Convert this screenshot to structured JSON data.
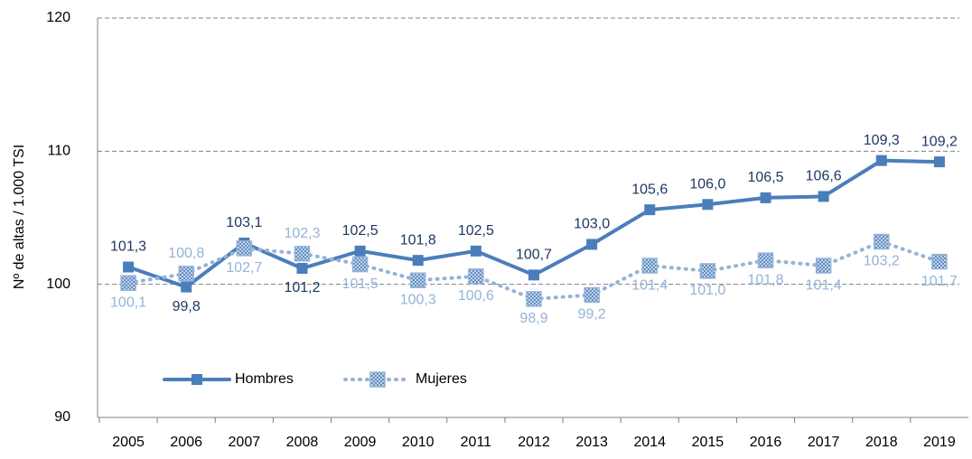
{
  "chart_data": {
    "type": "line",
    "y_label": "Nº de altas / 1.000 TSI",
    "categories": [
      "2005",
      "2006",
      "2007",
      "2008",
      "2009",
      "2010",
      "2011",
      "2012",
      "2013",
      "2014",
      "2015",
      "2016",
      "2017",
      "2018",
      "2019"
    ],
    "series": [
      {
        "name": "Hombres",
        "color": "#4a7ebb",
        "label_color": "#1f3864",
        "values": [
          101.3,
          99.8,
          103.1,
          101.2,
          102.5,
          101.8,
          102.5,
          100.7,
          103.0,
          105.6,
          106.0,
          106.5,
          106.6,
          109.3,
          109.2
        ],
        "value_labels": [
          "101,3",
          "99,8",
          "103,1",
          "101,2",
          "102,5",
          "101,8",
          "102,5",
          "100,7",
          "103,0",
          "105,6",
          "106,0",
          "106,5",
          "106,6",
          "109,3",
          "109,2"
        ]
      },
      {
        "name": "Mujeres",
        "color": "#95b3d7",
        "label_color": "#95b3d7",
        "values": [
          100.1,
          100.8,
          102.7,
          102.3,
          101.5,
          100.3,
          100.6,
          98.9,
          99.2,
          101.4,
          101.0,
          101.8,
          101.4,
          103.2,
          101.7
        ],
        "value_labels": [
          "100,1",
          "100,8",
          "102,7",
          "102,3",
          "101,5",
          "100,3",
          "100,6",
          "98,9",
          "99,2",
          "101,4",
          "101,0",
          "101,8",
          "101,4",
          "103,2",
          "101,7"
        ]
      }
    ],
    "ylim": [
      90,
      120
    ],
    "yticks": [
      90,
      100,
      110,
      120
    ],
    "grid": true
  }
}
